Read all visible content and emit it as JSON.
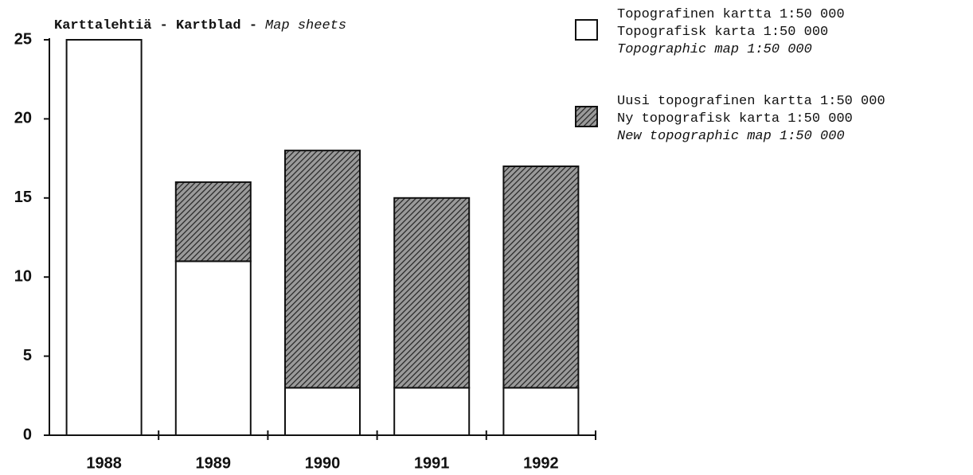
{
  "chart_data": {
    "type": "stacked_bar",
    "title": [
      "Karttalehtiä - Kartblad -",
      "Map sheets"
    ],
    "categories": [
      "1988",
      "1989",
      "1990",
      "1991",
      "1992"
    ],
    "series": [
      {
        "name": [
          "Topografinen kartta 1:50 000",
          "Topografisk karta 1:50 000",
          "Topographic map 1:50 000"
        ],
        "color": "#ffffff",
        "values": [
          25,
          11,
          3,
          3,
          3
        ]
      },
      {
        "name": [
          "Uusi topografinen kartta 1:50 000",
          "Ny topografisk karta 1:50 000",
          "New topographic map 1:50 000"
        ],
        "color": "#6e6e6e",
        "pattern": "hatch",
        "values": [
          0,
          5,
          15,
          12,
          14
        ]
      }
    ],
    "ylim": [
      0,
      25
    ],
    "yticks": [
      0,
      5,
      10,
      15,
      20,
      25
    ],
    "grid": false,
    "legend": "top-right"
  }
}
